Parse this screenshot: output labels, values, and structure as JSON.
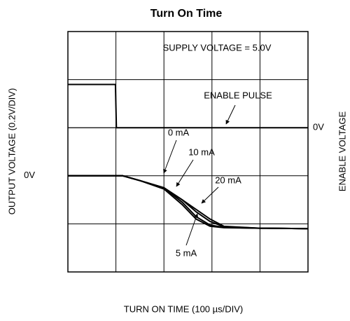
{
  "chart_data": {
    "type": "line",
    "title": "Turn On Time",
    "xlabel": "TURN ON TIME (100 µs/DIV)",
    "ylabel": "OUTPUT VOLTAGE (0.2V/DIV)",
    "y2label": "ENABLE VOLTAGE",
    "xlim": [
      0,
      500
    ],
    "ylim": [
      -0.4,
      0.6
    ],
    "y2lim": [
      -3,
      2
    ],
    "yticks": [
      {
        "value": 0,
        "label": "0V"
      }
    ],
    "y2ticks": [
      {
        "value": 0,
        "label": "0V"
      }
    ],
    "xgrid": [
      100,
      200,
      300,
      400
    ],
    "ygrid": [
      -0.2,
      0.2,
      0.4
    ],
    "grid": true,
    "annotations": [
      "SUPPLY VOLTAGE = 5.0V",
      "ENABLE PULSE",
      "0 mA",
      "10 mA",
      "20 mA",
      "5 mA"
    ],
    "series": [
      {
        "name": "0 mA",
        "color": "#000000",
        "x": [
          0,
          114,
          150,
          200,
          238,
          267,
          296,
          325,
          400,
          500
        ],
        "values": [
          0,
          0,
          -0.02,
          -0.05,
          -0.11,
          -0.17,
          -0.205,
          -0.215,
          -0.218,
          -0.22
        ]
      },
      {
        "name": "10 mA",
        "color": "#000000",
        "x": [
          0,
          114,
          150,
          200,
          238,
          267,
          296,
          325,
          400,
          500
        ],
        "values": [
          0,
          0,
          -0.02,
          -0.05,
          -0.1,
          -0.15,
          -0.19,
          -0.212,
          -0.218,
          -0.22
        ]
      },
      {
        "name": "20 mA",
        "color": "#000000",
        "x": [
          0,
          114,
          150,
          200,
          238,
          267,
          296,
          325,
          400,
          500
        ],
        "values": [
          0,
          0,
          -0.02,
          -0.05,
          -0.1,
          -0.14,
          -0.18,
          -0.21,
          -0.218,
          -0.22
        ]
      },
      {
        "name": "5 mA",
        "color": "#000000",
        "x": [
          0,
          114,
          150,
          200,
          238,
          267,
          296,
          325,
          400,
          500
        ],
        "values": [
          0,
          0,
          -0.02,
          -0.055,
          -0.12,
          -0.18,
          -0.21,
          -0.216,
          -0.218,
          -0.22
        ]
      },
      {
        "name": "ENABLE",
        "color": "#000000",
        "axis": "y2",
        "x": [
          0,
          99,
          101,
          500
        ],
        "values": [
          0.9,
          0.9,
          0,
          0
        ]
      }
    ]
  }
}
